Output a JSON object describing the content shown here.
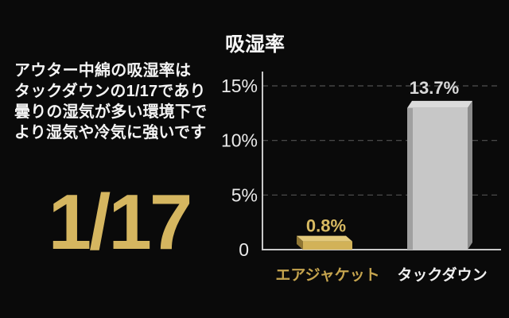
{
  "page": {
    "background": "#0a0a0a"
  },
  "left_panel": {
    "description_lines": [
      "アウター中綿の吸湿率は",
      "タックダウンの1/17であり",
      "曇りの湿気が多い環境下で",
      "より湿気や冷気に強いです"
    ],
    "ratio_highlight": "1/17",
    "ratio_color": "#d5b660"
  },
  "chart_data": {
    "type": "bar",
    "title": "吸湿率",
    "categories": [
      "エアジャケット",
      "タックダウン"
    ],
    "values": [
      0.8,
      13.7
    ],
    "series": [
      {
        "name": "エアジャケット",
        "value": 0.8,
        "value_label": "0.8%",
        "bar_face_color": "#d2b258",
        "bar_top_color": "#e4ca7c",
        "bar_side_color": "#8f7633",
        "value_label_color": "#d8ba62",
        "category_label_color": "#c5a44e"
      },
      {
        "name": "タックダウン",
        "value": 13.7,
        "value_label": "13.7%",
        "bar_face_color": "#c7c7c7",
        "bar_top_color": "#dbdbdb",
        "bar_side_color": "#8c8c8c",
        "value_label_color": "#d8d8d8",
        "category_label_color": "#f0f0f0"
      }
    ],
    "xlabel": "",
    "ylabel": "",
    "ylim": [
      0,
      15
    ],
    "yticks": [
      0,
      5,
      10,
      15
    ],
    "ytick_labels": [
      "0",
      "5%",
      "10%",
      "15%"
    ],
    "grid": "horizontal dashed at 5%, 10%, 15%",
    "legend": "none",
    "axis_color": "#c8c8c8",
    "gridline_color": "#525252",
    "tick_label_color": "#eaeaea"
  }
}
